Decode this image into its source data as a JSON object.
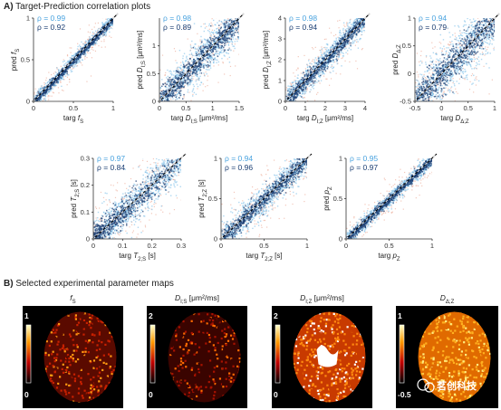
{
  "section_a": {
    "label": "A)",
    "title": "Target-Prediction correlation plots"
  },
  "section_b": {
    "label": "B)",
    "title": "Selected experimental parameter maps"
  },
  "colors": {
    "rho_light": "#4aa3df",
    "rho_dark": "#1c3f73",
    "dense_core": "#1c3f73",
    "spread": "#e8a48c"
  },
  "chart_data": [
    {
      "type": "scatter",
      "xlabel": "targ f_S",
      "ylabel": "pred f_S",
      "xticks": [
        "0",
        "0.5",
        "1"
      ],
      "yticks": [
        "0",
        "0.5",
        "1"
      ],
      "xlim": [
        0,
        1
      ],
      "ylim": [
        0,
        1
      ],
      "rho": [
        "ρ = 0.99",
        "ρ = 0.92"
      ]
    },
    {
      "type": "scatter",
      "xlabel": "targ D_I;S  [μm²/ms]",
      "ylabel": "pred D_I;S  [μm²/ms]",
      "xticks": [
        "0",
        "0.5",
        "1",
        "1.5"
      ],
      "yticks": [
        "0",
        "0.5",
        "1"
      ],
      "xlim": [
        0,
        1.5
      ],
      "ylim": [
        0,
        1.5
      ],
      "rho": [
        "ρ = 0.98",
        "ρ = 0.89"
      ]
    },
    {
      "type": "scatter",
      "xlabel": "targ D_I;Z  [μm²/ms]",
      "ylabel": "pred D_I;Z  [μm²/ms]",
      "xticks": [
        "0",
        "1",
        "2",
        "3",
        "4"
      ],
      "yticks": [
        "0",
        "1",
        "2",
        "3",
        "4"
      ],
      "xlim": [
        0,
        4
      ],
      "ylim": [
        0,
        4
      ],
      "rho": [
        "ρ = 0.98",
        "ρ = 0.94"
      ]
    },
    {
      "type": "scatter",
      "xlabel": "targ D_Δ;Z",
      "ylabel": "pred D_Δ;Z",
      "xticks": [
        "-0.5",
        "0",
        "0.5",
        "1"
      ],
      "yticks": [
        "-0.5",
        "0",
        "0.5",
        "1"
      ],
      "xlim": [
        -0.5,
        1
      ],
      "ylim": [
        -0.5,
        1
      ],
      "rho": [
        "ρ = 0.94",
        "ρ = 0.79"
      ]
    },
    {
      "type": "scatter",
      "xlabel": "targ T_2;S  [s]",
      "ylabel": "pred T_2;S  [s]",
      "xticks": [
        "0",
        "0.1",
        "0.2",
        "0.3"
      ],
      "yticks": [
        "0",
        "0.1",
        "0.2",
        "0.3"
      ],
      "xlim": [
        0,
        0.3
      ],
      "ylim": [
        0,
        0.3
      ],
      "rho": [
        "ρ = 0.97",
        "ρ = 0.84"
      ]
    },
    {
      "type": "scatter",
      "xlabel": "targ T_2;Z  [s]",
      "ylabel": "pred T_2;Z  [s]",
      "xticks": [
        "0",
        "0.5",
        "1"
      ],
      "yticks": [
        "0",
        "0.5",
        "1"
      ],
      "xlim": [
        0,
        1
      ],
      "ylim": [
        0,
        1
      ],
      "rho": [
        "ρ = 0.94",
        "ρ = 0.96"
      ]
    },
    {
      "type": "scatter",
      "xlabel": "targ p_Z",
      "ylabel": "pred p_Z",
      "xticks": [
        "0",
        "0.5",
        "1"
      ],
      "yticks": [
        "0",
        "0.5",
        "1"
      ],
      "xlim": [
        0,
        1
      ],
      "ylim": [
        0,
        1
      ],
      "rho": [
        "ρ = 0.95",
        "ρ = 0.97"
      ]
    }
  ],
  "maps": [
    {
      "title": "f_S",
      "cbar_top": "1",
      "cbar_bottom": "0"
    },
    {
      "title": "D_I;S  [μm²/ms]",
      "cbar_top": "2",
      "cbar_bottom": "0"
    },
    {
      "title": "D_I;Z  [μm²/ms]",
      "cbar_top": "2",
      "cbar_bottom": "0"
    },
    {
      "title": "D_Δ;Z",
      "cbar_top": "1",
      "cbar_bottom": "-0.5"
    }
  ],
  "watermark": "茗创科技"
}
